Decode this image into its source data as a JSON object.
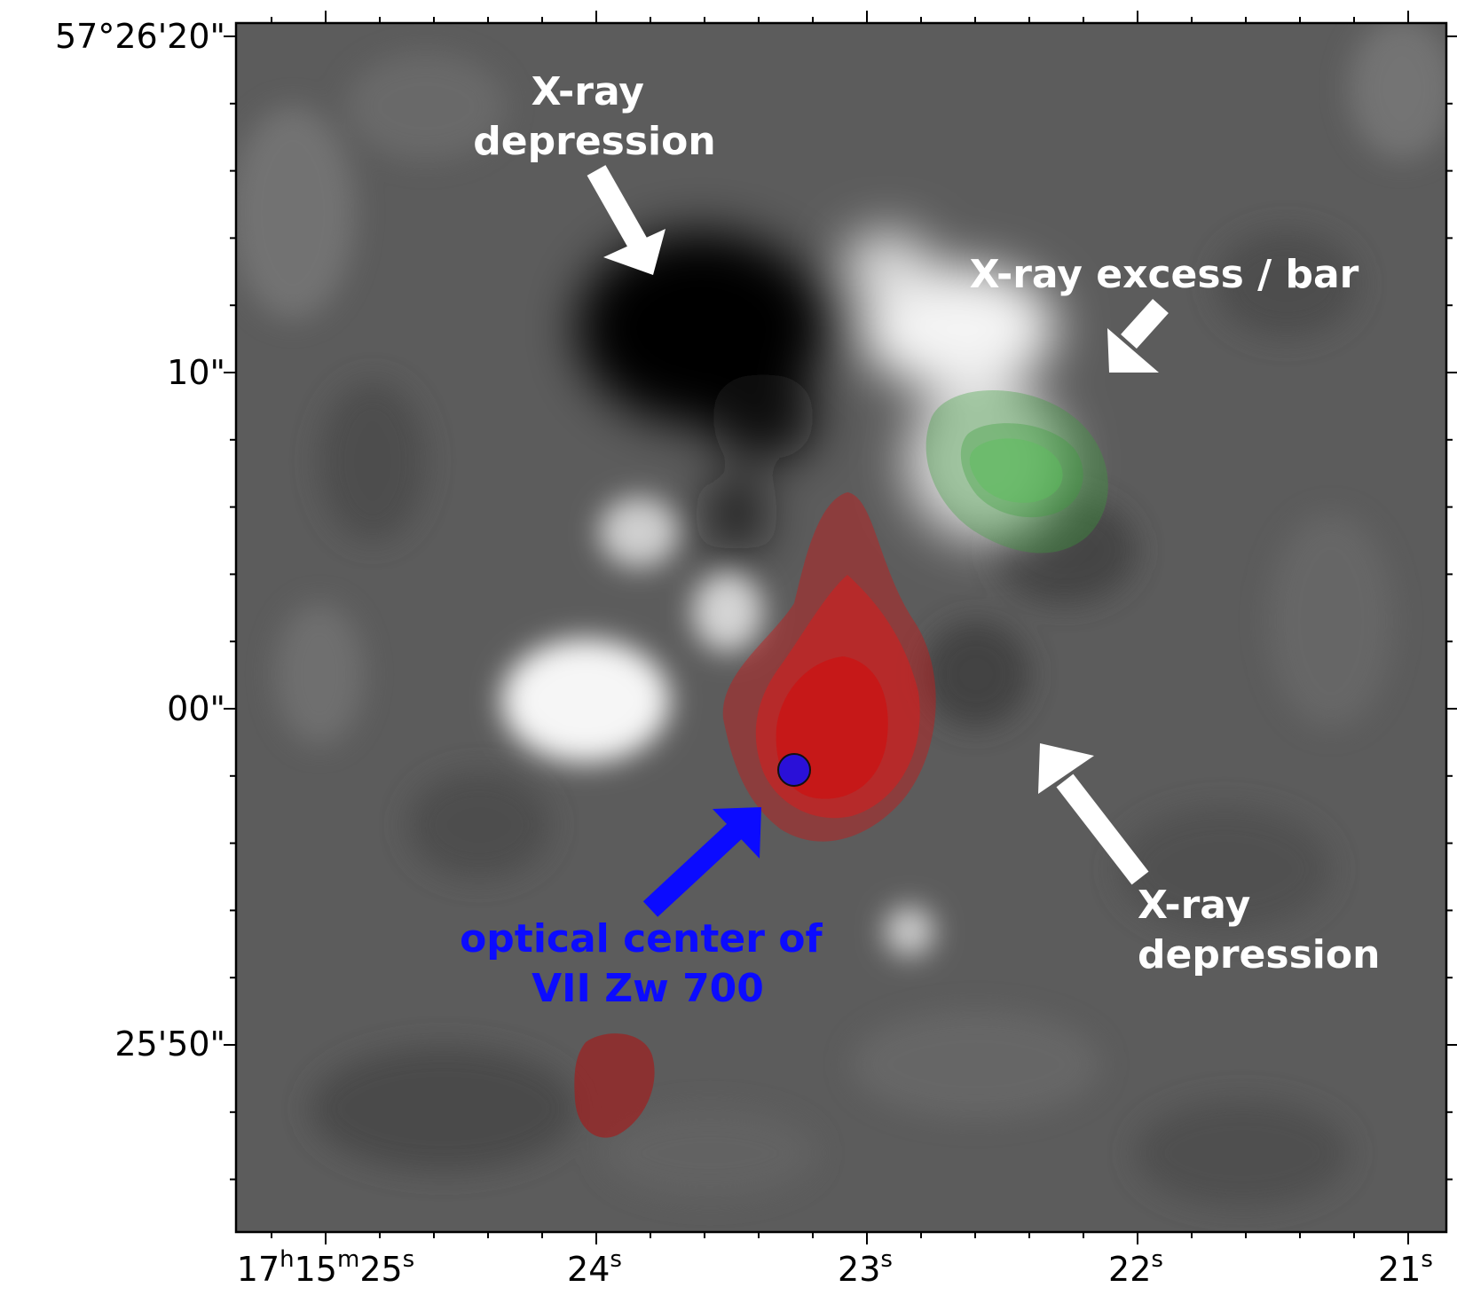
{
  "image": {
    "colormap": "grayscale",
    "overlays": {
      "red_contours_color": "#d01010",
      "green_contours_color": "#3aa03a",
      "optical_center_marker_color": "#2a10d8"
    }
  },
  "axes": {
    "y_ticks": [
      {
        "label": "57°26'20\""
      },
      {
        "label": "10\""
      },
      {
        "label": "00\""
      },
      {
        "label": "25'50\""
      }
    ],
    "x_ticks": [
      {
        "base": "17",
        "sup1": "h",
        "mid": "15",
        "sup2": "m",
        "sec": "25",
        "sup3": "s"
      },
      {
        "sec": "24",
        "sup3": "s"
      },
      {
        "sec": "23",
        "sup3": "s"
      },
      {
        "sec": "22",
        "sup3": "s"
      },
      {
        "sec": "21",
        "sup3": "s"
      }
    ]
  },
  "annotations": {
    "depression_top": {
      "line1": "X-ray",
      "line2": "depression"
    },
    "excess": {
      "text": "X-ray excess / bar"
    },
    "depression_right": {
      "line1": "X-ray",
      "line2": "depression"
    },
    "optical_center": {
      "line1": "optical center of",
      "line2": "VII Zw 700"
    }
  }
}
